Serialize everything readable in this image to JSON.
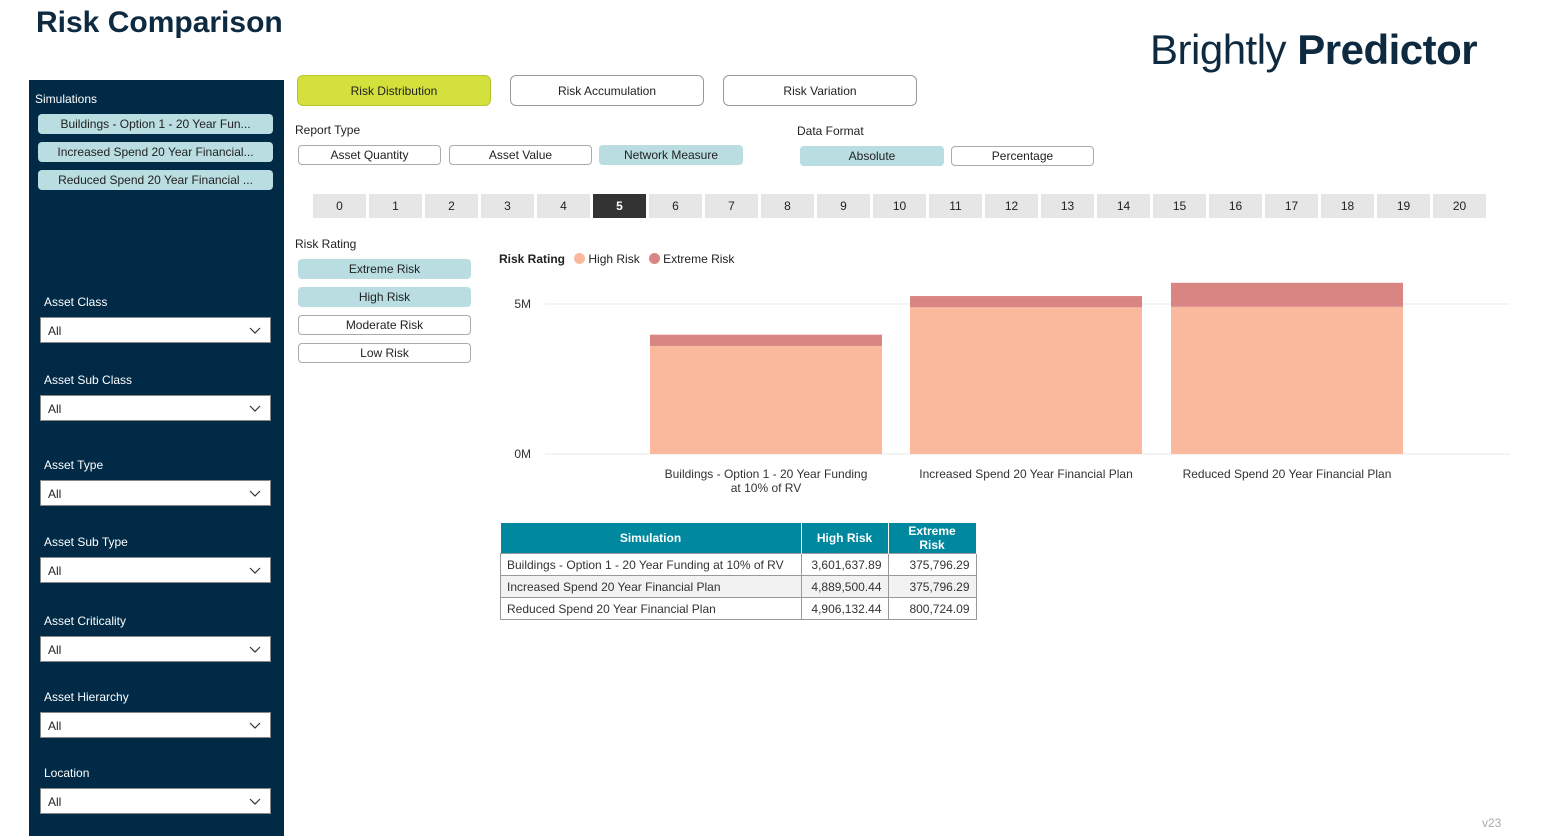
{
  "header": {
    "title": "Risk Comparison",
    "brand_light": "Brightly",
    "brand_bold": "Predictor"
  },
  "sidebar": {
    "simulations_label": "Simulations",
    "simulations": [
      "Buildings - Option 1 - 20 Year Fun...",
      "Increased Spend 20 Year Financial...",
      "Reduced Spend 20 Year Financial ..."
    ],
    "filters": [
      {
        "label": "Asset Class",
        "value": "All"
      },
      {
        "label": "Asset Sub Class",
        "value": "All"
      },
      {
        "label": "Asset Type",
        "value": "All"
      },
      {
        "label": "Asset Sub Type",
        "value": "All"
      },
      {
        "label": "Asset Criticality",
        "value": "All"
      },
      {
        "label": "Asset Hierarchy",
        "value": "All"
      },
      {
        "label": "Location",
        "value": "All"
      }
    ]
  },
  "tabs": [
    {
      "label": "Risk Distribution",
      "active": true
    },
    {
      "label": "Risk Accumulation",
      "active": false
    },
    {
      "label": "Risk Variation",
      "active": false
    }
  ],
  "report_type": {
    "label": "Report Type",
    "options": [
      "Asset Quantity",
      "Asset Value",
      "Network Measure"
    ],
    "selected": "Network Measure"
  },
  "data_format": {
    "label": "Data Format",
    "options": [
      "Absolute",
      "Percentage"
    ],
    "selected": "Absolute"
  },
  "years": {
    "values": [
      "0",
      "1",
      "2",
      "3",
      "4",
      "5",
      "6",
      "7",
      "8",
      "9",
      "10",
      "11",
      "12",
      "13",
      "14",
      "15",
      "16",
      "17",
      "18",
      "19",
      "20"
    ],
    "selected": "5"
  },
  "risk_rating": {
    "label": "Risk Rating",
    "options": [
      {
        "label": "Extreme Risk",
        "selected": true
      },
      {
        "label": "High Risk",
        "selected": true
      },
      {
        "label": "Moderate Risk",
        "selected": false
      },
      {
        "label": "Low Risk",
        "selected": false
      }
    ]
  },
  "legend": {
    "title": "Risk Rating",
    "items": [
      {
        "name": "High Risk",
        "color": "#fab99d"
      },
      {
        "name": "Extreme Risk",
        "color": "#d98584"
      }
    ]
  },
  "chart_data": {
    "type": "bar",
    "stacked": true,
    "categories": [
      "Buildings - Option 1 - 20 Year Funding at 10% of RV",
      "Increased Spend 20 Year Financial Plan",
      "Reduced Spend 20 Year Financial Plan"
    ],
    "series": [
      {
        "name": "High Risk",
        "values": [
          3601637.89,
          4889500.44,
          4906132.44
        ],
        "color": "#fab99d"
      },
      {
        "name": "Extreme Risk",
        "values": [
          375796.29,
          375796.29,
          800724.09
        ],
        "color": "#d98584"
      }
    ],
    "yticks": [
      {
        "value": 0,
        "label": "0M"
      },
      {
        "value": 5000000,
        "label": "5M"
      }
    ],
    "ylim": [
      0,
      5800000
    ],
    "grid": true,
    "legend": "top-left"
  },
  "table": {
    "headers": [
      "Simulation",
      "High Risk",
      "Extreme Risk"
    ],
    "rows": [
      [
        "Buildings - Option 1 - 20 Year Funding at 10% of RV",
        "3,601,637.89",
        "375,796.29"
      ],
      [
        "Increased Spend 20 Year Financial Plan",
        "4,889,500.44",
        "375,796.29"
      ],
      [
        "Reduced Spend 20 Year Financial Plan",
        "4,906,132.44",
        "800,724.09"
      ]
    ]
  },
  "footer": {
    "version": "v23"
  }
}
